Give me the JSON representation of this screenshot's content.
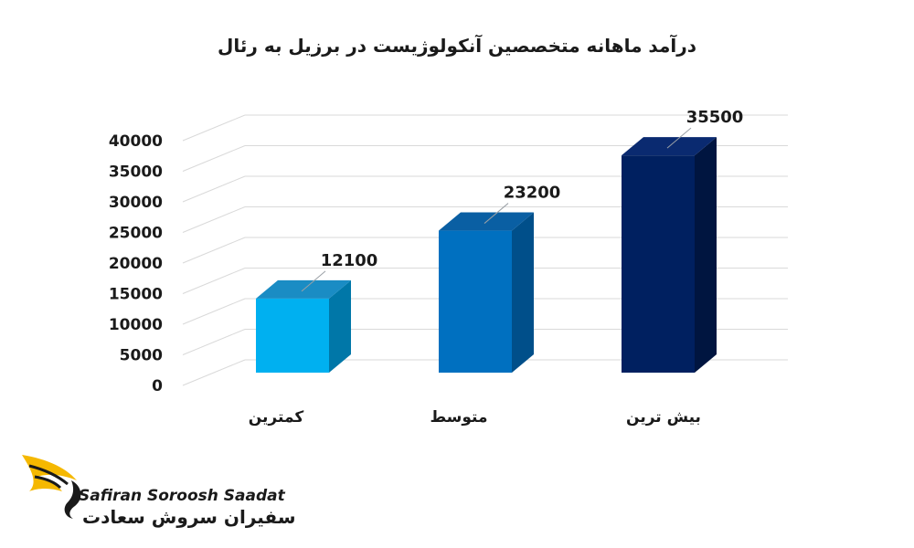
{
  "chart_data": {
    "type": "bar",
    "title": "درآمد ماهانه متخصصین آنکولوژیست در برزیل به رئال",
    "categories": [
      "کمترین",
      "متوسط",
      "بیش ترین"
    ],
    "values": [
      12100,
      23200,
      35500
    ],
    "data_labels": [
      "12100",
      "23200",
      "35500"
    ],
    "y_ticks": [
      "0",
      "5000",
      "10000",
      "15000",
      "20000",
      "25000",
      "30000",
      "35000",
      "40000"
    ],
    "ylim": [
      0,
      40000
    ],
    "grid": true,
    "style": "3d-column",
    "colors": [
      {
        "front": "#00b0f0",
        "side": "#0077a8",
        "top": "#1a8cc4"
      },
      {
        "front": "#0070c0",
        "side": "#004f8a",
        "top": "#0a5fa3"
      },
      {
        "front": "#002060",
        "side": "#001540",
        "top": "#0a2a70"
      }
    ]
  },
  "logo": {
    "text_en": "Safiran Soroosh Saadat",
    "text_fa": "سفیران سروش سعادت",
    "accent_color": "#f5b800"
  }
}
